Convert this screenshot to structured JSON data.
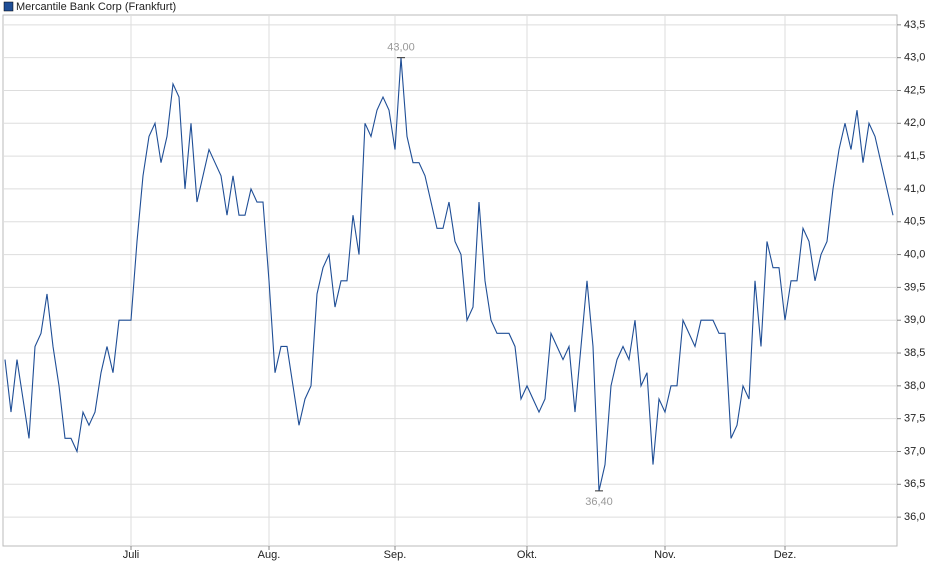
{
  "chart_data": {
    "type": "line",
    "series": [
      {
        "name": "Mercantile Bank Corp (Frankfurt)",
        "color": "#1f4e96",
        "values": [
          38.4,
          37.6,
          38.4,
          37.8,
          37.2,
          38.6,
          38.8,
          39.4,
          38.6,
          38.0,
          37.2,
          37.2,
          37.0,
          37.6,
          37.4,
          37.6,
          38.2,
          38.6,
          38.2,
          39.0,
          39.0,
          39.0,
          40.2,
          41.2,
          41.8,
          42.0,
          41.4,
          41.8,
          42.6,
          42.4,
          41.0,
          42.0,
          40.8,
          41.2,
          41.6,
          41.4,
          41.2,
          40.6,
          41.2,
          40.6,
          40.6,
          41.0,
          40.8,
          40.8,
          39.6,
          38.2,
          38.6,
          38.6,
          38.0,
          37.4,
          37.8,
          38.0,
          39.4,
          39.8,
          40.0,
          39.2,
          39.6,
          39.6,
          40.6,
          40.0,
          42.0,
          41.8,
          42.2,
          42.4,
          42.2,
          41.6,
          43.0,
          41.8,
          41.4,
          41.4,
          41.2,
          40.8,
          40.4,
          40.4,
          40.8,
          40.2,
          40.0,
          39.0,
          39.2,
          40.8,
          39.6,
          39.0,
          38.8,
          38.8,
          38.8,
          38.6,
          37.8,
          38.0,
          37.8,
          37.6,
          37.8,
          38.8,
          38.6,
          38.4,
          38.6,
          37.6,
          38.6,
          39.6,
          38.6,
          36.4,
          36.8,
          38.0,
          38.4,
          38.6,
          38.4,
          39.0,
          38.0,
          38.2,
          36.8,
          37.8,
          37.6,
          38.0,
          38.0,
          39.0,
          38.8,
          38.6,
          39.0,
          39.0,
          39.0,
          38.8,
          38.8,
          37.2,
          37.4,
          38.0,
          37.8,
          39.6,
          38.6,
          40.2,
          39.8,
          39.8,
          39.0,
          39.6,
          39.6,
          40.4,
          40.2,
          39.6,
          40.0,
          40.2,
          41.0,
          41.6,
          42.0,
          41.6,
          42.2,
          41.4,
          42.0,
          41.8,
          41.4,
          41.0,
          40.6
        ],
        "value_labels": [
          null,
          null,
          null,
          null,
          null,
          null,
          null,
          null,
          null,
          null,
          null,
          null,
          null,
          null,
          null,
          null,
          null,
          null,
          null,
          null,
          null,
          null,
          null,
          null,
          null,
          null,
          null,
          null,
          null,
          null,
          null,
          null,
          null,
          null,
          null,
          null,
          null,
          null,
          null,
          null,
          null,
          null,
          null,
          null,
          null,
          null,
          null,
          null,
          null,
          null,
          null,
          null,
          null,
          null,
          null,
          null,
          null,
          null,
          null,
          null,
          null,
          null,
          null,
          null,
          null,
          null,
          "43,00",
          null,
          null,
          null,
          null,
          null,
          null,
          null,
          null,
          null,
          null,
          null,
          null,
          null,
          null,
          null,
          null,
          null,
          null,
          null,
          null,
          null,
          null,
          null,
          null,
          null,
          null,
          null,
          null,
          null,
          null,
          null,
          null,
          "36,40",
          null,
          null,
          null,
          null,
          null,
          null,
          null,
          null,
          null,
          null,
          null,
          null,
          null,
          null,
          null,
          null,
          null,
          null,
          null,
          null,
          null,
          null,
          null,
          null,
          null,
          null,
          null,
          null,
          null,
          null,
          null,
          null,
          null,
          null,
          null,
          null,
          null,
          null,
          null,
          null,
          null,
          null,
          null,
          null,
          null,
          null,
          null,
          null,
          null
        ]
      }
    ],
    "categories": [
      null,
      null,
      null,
      null,
      null,
      null,
      null,
      null,
      null,
      null,
      null,
      null,
      null,
      null,
      null,
      null,
      null,
      null,
      null,
      null,
      null,
      "Juli",
      null,
      null,
      null,
      null,
      null,
      null,
      null,
      null,
      null,
      null,
      null,
      null,
      null,
      null,
      null,
      null,
      null,
      null,
      null,
      null,
      null,
      null,
      "Aug.",
      null,
      null,
      null,
      null,
      null,
      null,
      null,
      null,
      null,
      null,
      null,
      null,
      null,
      null,
      null,
      null,
      null,
      null,
      null,
      null,
      "Sep.",
      null,
      null,
      null,
      null,
      null,
      null,
      null,
      null,
      null,
      null,
      null,
      null,
      null,
      null,
      null,
      null,
      null,
      null,
      null,
      null,
      null,
      "Okt.",
      null,
      null,
      null,
      null,
      null,
      null,
      null,
      null,
      null,
      null,
      null,
      null,
      null,
      null,
      null,
      null,
      null,
      null,
      null,
      null,
      null,
      null,
      "Nov.",
      null,
      null,
      null,
      null,
      null,
      null,
      null,
      null,
      null,
      null,
      null,
      null,
      null,
      null,
      null,
      null,
      null,
      null,
      null,
      "Dez.",
      null,
      null,
      null,
      null,
      null,
      null,
      null,
      null,
      null,
      null,
      null,
      null,
      null,
      null,
      null,
      null,
      null,
      null
    ],
    "ylim": [
      35.56,
      43.65
    ],
    "yticks": [
      {
        "value": 36.0,
        "label": "36,0"
      },
      {
        "value": 36.5,
        "label": "36,5"
      },
      {
        "value": 37.0,
        "label": "37,0"
      },
      {
        "value": 37.5,
        "label": "37,5"
      },
      {
        "value": 38.0,
        "label": "38,0"
      },
      {
        "value": 38.5,
        "label": "38,5"
      },
      {
        "value": 39.0,
        "label": "39,0"
      },
      {
        "value": 39.5,
        "label": "39,5"
      },
      {
        "value": 40.0,
        "label": "40,0"
      },
      {
        "value": 40.5,
        "label": "40,5"
      },
      {
        "value": 41.0,
        "label": "41,0"
      },
      {
        "value": 41.5,
        "label": "41,5"
      },
      {
        "value": 42.0,
        "label": "42,0"
      },
      {
        "value": 42.5,
        "label": "42,5"
      },
      {
        "value": 43.0,
        "label": "43,0"
      },
      {
        "value": 43.5,
        "label": "43,5"
      }
    ],
    "grid": true
  }
}
